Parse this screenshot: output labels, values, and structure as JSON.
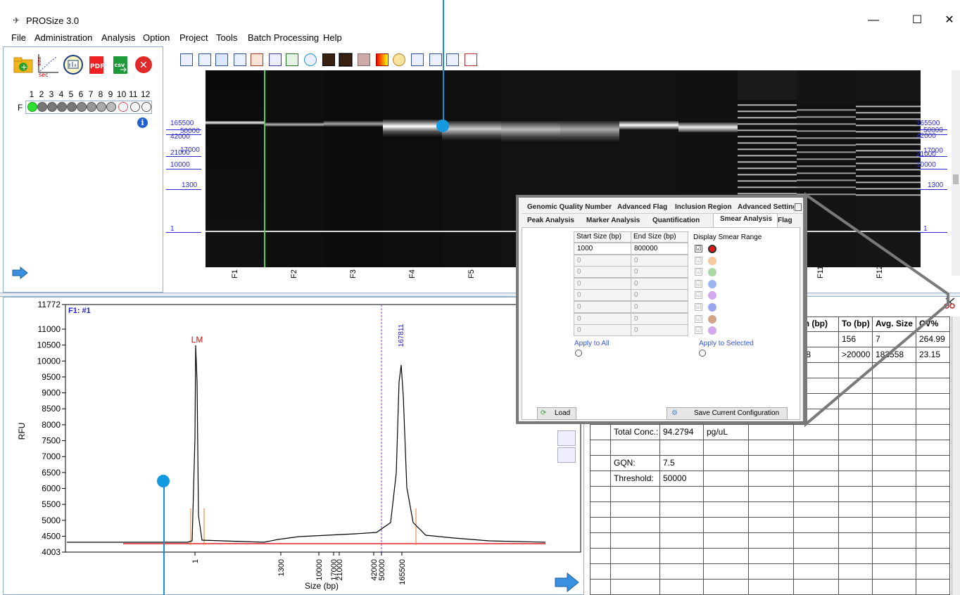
{
  "window": {
    "title": "PROSize 3.0",
    "controls": [
      "—",
      "☐",
      "✕"
    ]
  },
  "menu": [
    "File",
    "Administration",
    "Analysis",
    "Option",
    "Project",
    "Tools",
    "Batch Processing",
    "Help"
  ],
  "left_panel": {
    "toolbar_icons": [
      "add-folder-icon",
      "size-vs-sec-icon",
      "calculator-icon",
      "pdf-export-icon",
      "csv-export-icon",
      "close-red-icon"
    ],
    "tb_text": {
      "size": "size",
      "sec": "sec",
      "pdf": "PDF",
      "csv": "csv",
      "x": "✕",
      "info": "i"
    },
    "row_label": "F",
    "well_numbers": [
      "1",
      "2",
      "3",
      "4",
      "5",
      "6",
      "7",
      "8",
      "9",
      "10",
      "11",
      "12"
    ]
  },
  "gel": {
    "size_labels_left": [
      "165500",
      "50000",
      "42000",
      "21000",
      "17000",
      "10000",
      "1300",
      "1"
    ],
    "size_labels_right": [
      "165500",
      "50000",
      "42000",
      "21000",
      "17000",
      "10000",
      "1300",
      "1"
    ],
    "lane_labels": [
      "F1",
      "F2",
      "F3",
      "F4",
      "F5",
      "F11",
      "F12"
    ]
  },
  "electropherogram": {
    "sample_label": "F1: #1",
    "y_axis_label": "RFU",
    "x_axis_label": "Size (bp)",
    "y_ticks": [
      "11772",
      "11000",
      "10500",
      "10000",
      "9500",
      "9000",
      "8500",
      "8000",
      "7500",
      "7000",
      "6500",
      "6000",
      "5500",
      "5000",
      "4500",
      "4003"
    ],
    "x_ticks": [
      "1",
      "1300",
      "10000",
      "17000",
      "21000",
      "42000",
      "50000",
      "165500"
    ],
    "lm_label": "LM",
    "peak_label": "167811"
  },
  "dialog": {
    "tabs_row1": [
      "Genomic Quality Number",
      "Advanced Flag",
      "Inclusion Region",
      "Advanced Setting"
    ],
    "tabs_row2": [
      "Peak Analysis",
      "Marker Analysis",
      "Quantification",
      "Smear Analysis",
      "Flag"
    ],
    "col_start": "Start Size (bp)",
    "col_end": "End Size (bp)",
    "display_label": "Display Smear Range",
    "rows": [
      {
        "start": "1000",
        "end": "800000"
      },
      {
        "start": "0",
        "end": "0"
      },
      {
        "start": "0",
        "end": "0"
      },
      {
        "start": "0",
        "end": "0"
      },
      {
        "start": "0",
        "end": "0"
      },
      {
        "start": "0",
        "end": "0"
      },
      {
        "start": "0",
        "end": "0"
      },
      {
        "start": "0",
        "end": "0"
      }
    ],
    "check_mark": "☑",
    "range_colors": [
      "#e01818",
      "#f7c9a0",
      "#a9d8a6",
      "#9db6f2",
      "#d2a8f0",
      "#9aa7f0",
      "#d4a48a",
      "#d3a8ee"
    ],
    "apply_all": "Apply to All",
    "apply_selected": "Apply to Selected",
    "load_button": "Load",
    "save_button": "Save Current Configuration"
  },
  "results_table": {
    "headers": [
      "om (bp)",
      "To (bp)",
      "Avg. Size",
      "CV%"
    ],
    "row1": [
      "",
      "156",
      "7",
      "264.99"
    ],
    "row2": [
      "908",
      ">20000",
      "183558",
      "23.15"
    ],
    "total_conc_label": "Total Conc.:",
    "total_conc_value": "94.2794",
    "total_conc_unit": "pg/uL",
    "gqn_label": "GQN:",
    "gqn_value": "7.5",
    "threshold_label": "Threshold:",
    "threshold_value": "50000"
  }
}
